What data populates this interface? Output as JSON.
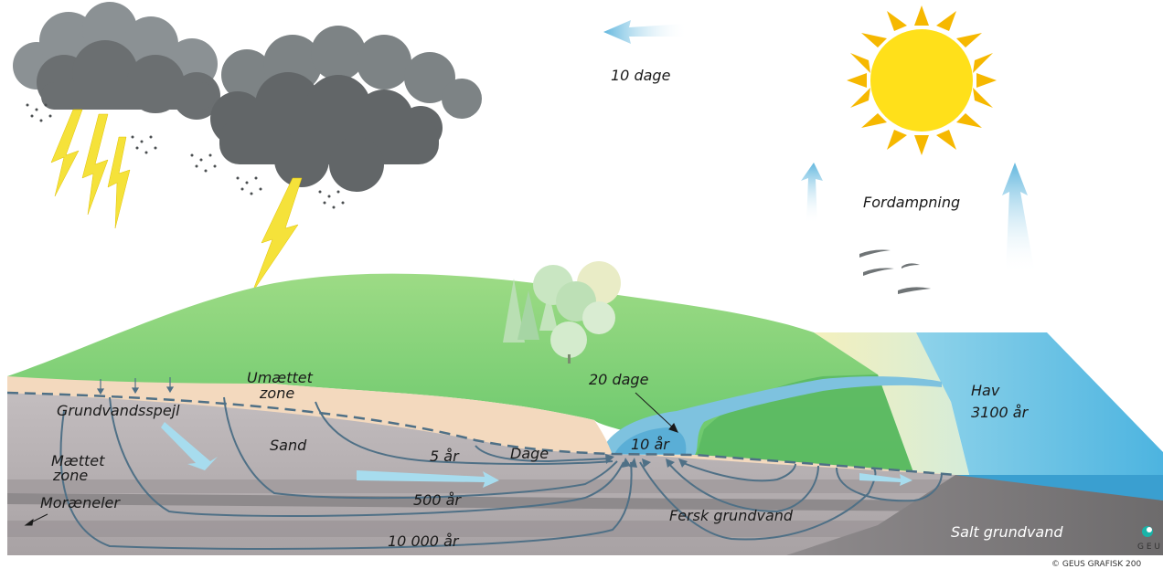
{
  "labels": {
    "wind": "10 dage",
    "evaporation": "Fordampning",
    "unsaturated_line1": "Umættet",
    "unsaturated_line2": "zone",
    "water_table": "Grundvandsspejl",
    "saturated_line1": "Mættet",
    "saturated_line2": "zone",
    "clay": "Moræneler",
    "sand": "Sand",
    "lake_residence": "20 dage",
    "lake_age": "10 år",
    "stream_days": "Dage",
    "flow_5": "5 år",
    "flow_500": "500 år",
    "flow_10000": "10 000 år",
    "fresh_groundwater": "Fersk grundvand",
    "salt_groundwater": "Salt grundvand",
    "sea_line1": "Hav",
    "sea_line2": "3100 år",
    "copyright": "© GEUS GRAFISK 200",
    "logo_caption": "G E U S"
  },
  "colors": {
    "cloud": "#6b6f71",
    "sun": "#ffe01a",
    "sun_rays": "#f6b800",
    "lightning": "#f5e23a",
    "hill": "#7fcf6d",
    "sea": "#5dbde3",
    "unsaturated_soil": "#f3d9be",
    "saturated_soil": "#b7b1b3",
    "clay_band": "#8e8a8c",
    "flow_lines": "#4f7086"
  },
  "icons": [
    "storm-cloud-icon",
    "rain-icon",
    "lightning-icon",
    "sun-icon",
    "tree-icon",
    "bird-icon",
    "arrow-icon",
    "geus-logo-icon"
  ]
}
